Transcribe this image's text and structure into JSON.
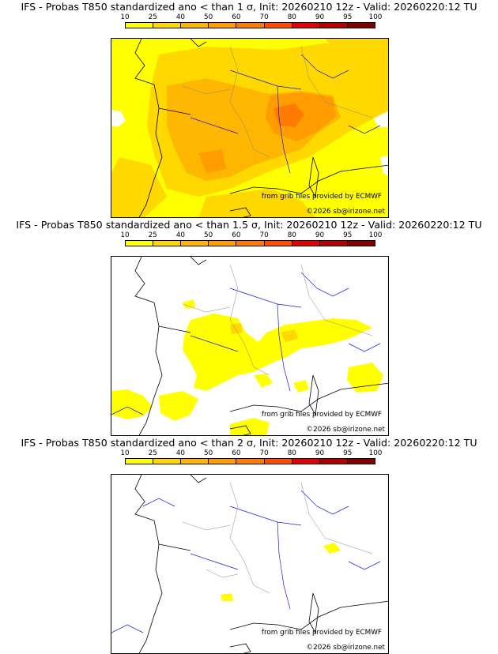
{
  "colorbar": {
    "ticks": [
      "10",
      "25",
      "40",
      "50",
      "60",
      "70",
      "80",
      "90",
      "95",
      "100"
    ],
    "colors": [
      "#ffff00",
      "#ffd800",
      "#ffb600",
      "#ff9c00",
      "#ff7a00",
      "#ff4c00",
      "#e40000",
      "#b60000",
      "#840000",
      "#4a0000"
    ]
  },
  "panels": [
    {
      "title": "IFS - Probas T850  standardized ano < than 1 σ, Init: 20260210 12z - Valid: 20260220:12 TU",
      "source_credit": "from grib files provided by ECMWF",
      "copyright": "©2026 sb@irizone.net"
    },
    {
      "title": "IFS - Probas T850  standardized ano < than 1.5 σ, Init: 20260210 12z - Valid: 20260220:12 TU",
      "source_credit": "from grib files provided by ECMWF",
      "copyright": "©2026 sb@irizone.net"
    },
    {
      "title": "IFS - Probas T850  standardized ano < than 2 σ, Init: 20260210 12z - Valid: 20260220:12 TU",
      "source_credit": "from grib files provided by ECMWF",
      "copyright": "©2026 sb@irizone.net"
    }
  ]
}
